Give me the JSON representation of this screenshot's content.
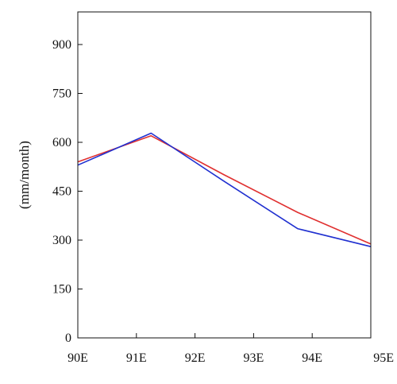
{
  "chart_data": {
    "type": "line",
    "title": "",
    "xlabel": "",
    "ylabel": "(mm/month)",
    "x_ticks": [
      {
        "value": 90,
        "label": "90E"
      },
      {
        "value": 91,
        "label": "91E"
      },
      {
        "value": 92,
        "label": "92E"
      },
      {
        "value": 93,
        "label": "93E"
      },
      {
        "value": 94,
        "label": "94E"
      },
      {
        "value": 95,
        "label": "95E"
      }
    ],
    "y_ticks": [
      0,
      150,
      300,
      450,
      600,
      750,
      900
    ],
    "xlim": [
      90,
      95
    ],
    "ylim": [
      0,
      1000
    ],
    "grid": false,
    "series": [
      {
        "color": "#e03030",
        "x": [
          90,
          91.25,
          92.5,
          93.75,
          95
        ],
        "y": [
          540,
          620,
          500,
          385,
          288
        ]
      },
      {
        "color": "#2030d0",
        "x": [
          90,
          91.25,
          92.5,
          93.75,
          95
        ],
        "y": [
          530,
          628,
          480,
          335,
          280
        ]
      }
    ]
  }
}
